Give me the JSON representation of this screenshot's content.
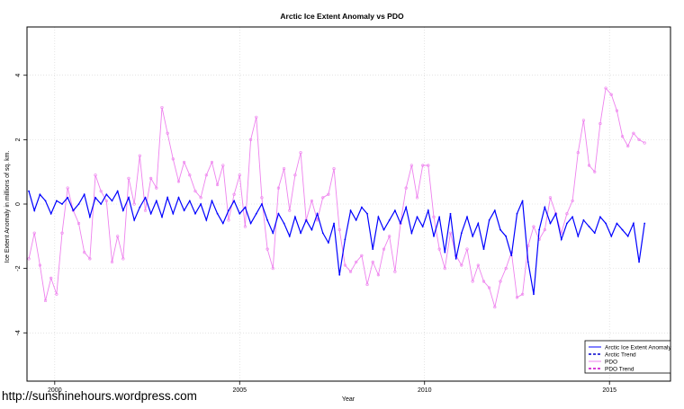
{
  "chart_data": {
    "type": "line",
    "title": "Arctic Ice Extent Anomaly vs PDO",
    "xlabel": "Year",
    "ylabel": "Ice Extent Anomaly in millions of sq. km.",
    "xlim": [
      1999.25,
      2016.65
    ],
    "ylim": [
      -5.5,
      5.5
    ],
    "x_ticks": [
      2000,
      2005,
      2010,
      2015
    ],
    "x_tick_labels": [
      "2000",
      "2005",
      "2010",
      "2015"
    ],
    "y_ticks": [
      -4,
      -2,
      0,
      2,
      4
    ],
    "y_tick_labels": [
      "-4",
      "-2",
      "0",
      "2",
      "4"
    ],
    "grid": true,
    "legend_position": "bottom-right",
    "colors": {
      "ice": "#0000ff",
      "ice_trend": "#0000cd",
      "pdo": "#ee82ee",
      "pdo_trend": "#c800c8",
      "grid": "#d3d3d3",
      "text": "#000000"
    },
    "legend": [
      {
        "label": "Arctic Ice Extent Anomaly",
        "style": "solid",
        "color": "#0000ff"
      },
      {
        "label": "Arctic Trend",
        "style": "dashed",
        "color": "#0000cd"
      },
      {
        "label": "PDO",
        "style": "solid",
        "color": "#ee82ee"
      },
      {
        "label": "PDO Trend",
        "style": "dashed",
        "color": "#c800c8"
      }
    ],
    "series": [
      {
        "name": "Arctic Ice Extent Anomaly",
        "x": [
          1999.3,
          1999.45,
          1999.6,
          1999.75,
          1999.9,
          2000.05,
          2000.2,
          2000.35,
          2000.5,
          2000.65,
          2000.8,
          2000.95,
          2001.1,
          2001.25,
          2001.4,
          2001.55,
          2001.7,
          2001.85,
          2002.0,
          2002.15,
          2002.3,
          2002.45,
          2002.6,
          2002.75,
          2002.9,
          2003.05,
          2003.2,
          2003.35,
          2003.5,
          2003.65,
          2003.8,
          2003.95,
          2004.1,
          2004.25,
          2004.4,
          2004.55,
          2004.7,
          2004.85,
          2005.0,
          2005.15,
          2005.3,
          2005.45,
          2005.6,
          2005.75,
          2005.9,
          2006.05,
          2006.2,
          2006.35,
          2006.5,
          2006.65,
          2006.8,
          2006.95,
          2007.1,
          2007.25,
          2007.4,
          2007.55,
          2007.7,
          2007.85,
          2008.0,
          2008.15,
          2008.3,
          2008.45,
          2008.6,
          2008.75,
          2008.9,
          2009.05,
          2009.2,
          2009.35,
          2009.5,
          2009.65,
          2009.8,
          2009.95,
          2010.1,
          2010.25,
          2010.4,
          2010.55,
          2010.7,
          2010.85,
          2011.0,
          2011.15,
          2011.3,
          2011.45,
          2011.6,
          2011.75,
          2011.9,
          2012.05,
          2012.2,
          2012.35,
          2012.5,
          2012.65,
          2012.8,
          2012.95,
          2013.1,
          2013.25,
          2013.4,
          2013.55,
          2013.7,
          2013.85,
          2014.0,
          2014.15,
          2014.3,
          2014.45,
          2014.6,
          2014.75,
          2014.9,
          2015.05,
          2015.2,
          2015.35,
          2015.5,
          2015.65,
          2015.8,
          2015.95
        ],
        "y": [
          0.4,
          -0.2,
          0.3,
          0.1,
          -0.3,
          0.1,
          0.0,
          0.2,
          -0.2,
          0.0,
          0.3,
          -0.4,
          0.2,
          0.0,
          0.3,
          0.1,
          0.4,
          -0.2,
          0.2,
          -0.5,
          -0.1,
          0.2,
          -0.3,
          0.1,
          -0.4,
          0.2,
          -0.3,
          0.2,
          -0.2,
          0.1,
          -0.3,
          0.0,
          -0.5,
          0.1,
          -0.3,
          -0.6,
          -0.2,
          0.1,
          -0.3,
          -0.1,
          -0.6,
          -0.3,
          0.0,
          -0.5,
          -0.9,
          -0.3,
          -0.6,
          -1.0,
          -0.4,
          -0.9,
          -0.5,
          -0.8,
          -0.3,
          -0.9,
          -1.2,
          -0.6,
          -2.2,
          -1.1,
          -0.2,
          -0.5,
          -0.1,
          -0.3,
          -1.4,
          -0.4,
          -0.8,
          -0.5,
          -0.2,
          -0.6,
          -0.1,
          -0.9,
          -0.4,
          -0.7,
          -0.2,
          -1.0,
          -0.4,
          -1.5,
          -0.3,
          -1.7,
          -0.9,
          -0.4,
          -1.0,
          -0.6,
          -1.4,
          -0.5,
          -0.2,
          -0.8,
          -1.0,
          -1.6,
          -0.3,
          0.1,
          -1.8,
          -2.8,
          -0.8,
          -0.1,
          -0.6,
          -0.3,
          -1.1,
          -0.6,
          -0.4,
          -1.0,
          -0.5,
          -0.7,
          -0.9,
          -0.4,
          -0.6,
          -1.0,
          -0.6,
          -0.8,
          -1.0,
          -0.6,
          -1.8,
          -0.6
        ]
      },
      {
        "name": "PDO",
        "x": [
          1999.3,
          1999.45,
          1999.6,
          1999.75,
          1999.9,
          2000.05,
          2000.2,
          2000.35,
          2000.5,
          2000.65,
          2000.8,
          2000.95,
          2001.1,
          2001.25,
          2001.4,
          2001.55,
          2001.7,
          2001.85,
          2002.0,
          2002.15,
          2002.3,
          2002.45,
          2002.6,
          2002.75,
          2002.9,
          2003.05,
          2003.2,
          2003.35,
          2003.5,
          2003.65,
          2003.8,
          2003.95,
          2004.1,
          2004.25,
          2004.4,
          2004.55,
          2004.7,
          2004.85,
          2005.0,
          2005.15,
          2005.3,
          2005.45,
          2005.6,
          2005.75,
          2005.9,
          2006.05,
          2006.2,
          2006.35,
          2006.5,
          2006.65,
          2006.8,
          2006.95,
          2007.1,
          2007.25,
          2007.4,
          2007.55,
          2007.7,
          2007.85,
          2008.0,
          2008.15,
          2008.3,
          2008.45,
          2008.6,
          2008.75,
          2008.9,
          2009.05,
          2009.2,
          2009.35,
          2009.5,
          2009.65,
          2009.8,
          2009.95,
          2010.1,
          2010.25,
          2010.4,
          2010.55,
          2010.7,
          2010.85,
          2011.0,
          2011.15,
          2011.3,
          2011.45,
          2011.6,
          2011.75,
          2011.9,
          2012.05,
          2012.2,
          2012.35,
          2012.5,
          2012.65,
          2012.8,
          2012.95,
          2013.1,
          2013.25,
          2013.4,
          2013.55,
          2013.7,
          2013.85,
          2014.0,
          2014.15,
          2014.3,
          2014.45,
          2014.6,
          2014.75,
          2014.9,
          2015.05,
          2015.2,
          2015.35,
          2015.5,
          2015.65,
          2015.8,
          2015.95
        ],
        "y": [
          -1.7,
          -0.9,
          -1.9,
          -3.0,
          -2.3,
          -2.8,
          -0.9,
          0.5,
          -0.2,
          -0.6,
          -1.5,
          -1.7,
          0.9,
          0.4,
          0.1,
          -1.8,
          -1.0,
          -1.7,
          0.8,
          0.0,
          1.5,
          -0.2,
          0.8,
          0.5,
          3.0,
          2.2,
          1.4,
          0.7,
          1.3,
          0.9,
          0.4,
          0.2,
          0.9,
          1.3,
          0.6,
          1.2,
          -0.5,
          0.3,
          0.9,
          -0.7,
          2.0,
          2.7,
          0.2,
          -1.4,
          -2.0,
          0.5,
          1.1,
          -0.2,
          0.9,
          1.6,
          -0.5,
          0.1,
          -0.5,
          0.2,
          0.3,
          1.1,
          -0.8,
          -1.9,
          -2.1,
          -1.8,
          -1.6,
          -2.5,
          -1.8,
          -2.2,
          -1.4,
          -1.0,
          -2.1,
          -0.6,
          0.5,
          1.2,
          0.2,
          1.2,
          1.2,
          -0.4,
          -1.4,
          -2.0,
          -0.9,
          -1.6,
          -1.9,
          -1.4,
          -2.4,
          -1.9,
          -2.4,
          -2.6,
          -3.2,
          -2.4,
          -2.0,
          -1.5,
          -2.9,
          -2.8,
          -1.3,
          -0.7,
          -1.1,
          -0.8,
          0.2,
          -0.3,
          -0.9,
          -0.3,
          0.1,
          1.6,
          2.6,
          1.2,
          1.0,
          2.5,
          3.6,
          3.4,
          2.9,
          2.1,
          1.8,
          2.2,
          2.0,
          1.9
        ]
      }
    ],
    "caption": "http://sunshinehours.wordpress.com"
  }
}
